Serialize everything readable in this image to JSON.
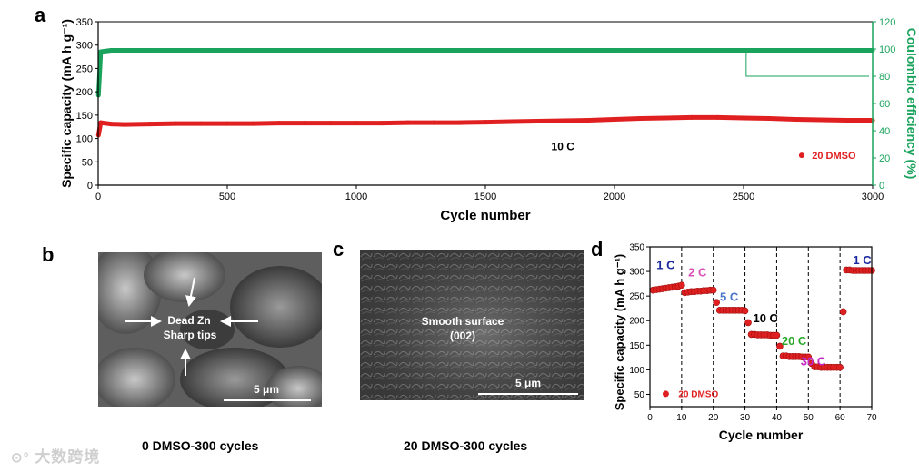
{
  "panels": {
    "a": "a",
    "b": "b",
    "c": "c",
    "d": "d"
  },
  "panel_b": {
    "label_dead_zn": "Dead Zn",
    "label_sharp_tips": "Sharp tips",
    "scale": "5 μm",
    "caption": "0 DMSO-300 cycles"
  },
  "panel_c": {
    "label_smooth": "Smooth surface",
    "label_plane": "(002)",
    "scale": "5 μm",
    "caption": "20 DMSO-300 cycles"
  },
  "watermark": "大数跨境",
  "colors": {
    "capacity": "#e02020",
    "ce": "#1aa35c",
    "axis": "#000000"
  },
  "chart_data": [
    {
      "type": "scatter",
      "title": "",
      "xlabel": "Cycle number",
      "ylabel": "Specific capacity (mA h g⁻¹)",
      "y2label": "Coulombic efficiency (%)",
      "xlim": [
        0,
        3000
      ],
      "ylim": [
        0,
        350
      ],
      "y2lim": [
        0,
        120
      ],
      "xticks": [
        0,
        500,
        1000,
        1500,
        2000,
        2500,
        3000
      ],
      "yticks": [
        0,
        50,
        100,
        150,
        200,
        250,
        300,
        350
      ],
      "y2ticks": [
        0,
        20,
        40,
        60,
        80,
        100,
        120
      ],
      "annotation": "10 C",
      "legend": "20 DMSO",
      "series": [
        {
          "name": "Specific capacity",
          "axis": "left",
          "x": [
            1,
            10,
            50,
            100,
            200,
            300,
            400,
            500,
            600,
            700,
            800,
            900,
            1000,
            1100,
            1200,
            1300,
            1400,
            1500,
            1600,
            1700,
            1800,
            1900,
            2000,
            2100,
            2200,
            2300,
            2400,
            2500,
            2600,
            2700,
            2800,
            2900,
            3000
          ],
          "values": [
            107,
            134,
            131,
            130,
            131,
            132,
            132,
            132,
            132,
            133,
            133,
            133,
            133,
            133,
            134,
            134,
            134,
            135,
            136,
            137,
            138,
            139,
            141,
            143,
            144,
            145,
            145,
            144,
            143,
            141,
            140,
            139,
            139
          ]
        },
        {
          "name": "Coulombic efficiency",
          "axis": "right",
          "x": [
            1,
            10,
            50,
            100,
            200,
            300,
            400,
            500,
            600,
            700,
            800,
            900,
            1000,
            1100,
            1200,
            1300,
            1400,
            1500,
            1600,
            1700,
            1800,
            1900,
            2000,
            2100,
            2200,
            2300,
            2400,
            2500,
            2600,
            2700,
            2800,
            2900,
            3000
          ],
          "values": [
            66,
            98,
            99,
            99,
            99,
            99,
            99,
            99,
            99,
            99,
            99,
            99,
            99,
            99,
            99,
            99,
            99,
            99,
            99,
            99,
            99,
            99,
            99,
            99,
            99,
            99,
            99,
            99,
            99,
            99,
            99,
            99,
            99
          ]
        }
      ]
    },
    {
      "type": "scatter",
      "title": "",
      "xlabel": "Cycle number",
      "ylabel": "Specific capacity (mA h g⁻¹)",
      "xlim": [
        0,
        70
      ],
      "ylim": [
        25,
        350
      ],
      "xticks": [
        0,
        10,
        20,
        30,
        40,
        50,
        60,
        70
      ],
      "yticks": [
        50,
        100,
        150,
        200,
        250,
        300,
        350
      ],
      "vlines": [
        10,
        20,
        30,
        40,
        50,
        60
      ],
      "legend": "20 DMSO",
      "rate_labels": [
        {
          "text": "1 C",
          "color": "#1a2a9c"
        },
        {
          "text": "2 C",
          "color": "#d94fb8"
        },
        {
          "text": "5 C",
          "color": "#4a78c8"
        },
        {
          "text": "10 C",
          "color": "#000000"
        },
        {
          "text": "20 C",
          "color": "#28a828"
        },
        {
          "text": "30 C",
          "color": "#c228c2"
        },
        {
          "text": "1 C",
          "color": "#1a2a9c"
        }
      ],
      "series": [
        {
          "name": "20 DMSO",
          "x": [
            1,
            2,
            3,
            4,
            5,
            6,
            7,
            8,
            9,
            10,
            11,
            12,
            13,
            14,
            15,
            16,
            17,
            18,
            19,
            20,
            21,
            22,
            23,
            24,
            25,
            26,
            27,
            28,
            29,
            30,
            31,
            32,
            33,
            34,
            35,
            36,
            37,
            38,
            39,
            40,
            41,
            42,
            43,
            44,
            45,
            46,
            47,
            48,
            49,
            50,
            51,
            52,
            53,
            54,
            55,
            56,
            57,
            58,
            59,
            60,
            61,
            62,
            63,
            64,
            65,
            66,
            67,
            68,
            69,
            70
          ],
          "values": [
            262,
            263,
            264,
            265,
            266,
            267,
            268,
            269,
            270,
            272,
            257,
            258,
            259,
            259,
            260,
            260,
            261,
            261,
            262,
            262,
            237,
            221,
            221,
            221,
            221,
            221,
            221,
            221,
            221,
            220,
            196,
            172,
            172,
            171,
            171,
            171,
            171,
            170,
            170,
            170,
            148,
            128,
            128,
            127,
            127,
            127,
            127,
            126,
            126,
            126,
            113,
            106,
            106,
            105,
            105,
            105,
            105,
            105,
            105,
            105,
            218,
            303,
            303,
            302,
            302,
            302,
            302,
            302,
            302,
            302
          ]
        }
      ]
    }
  ]
}
